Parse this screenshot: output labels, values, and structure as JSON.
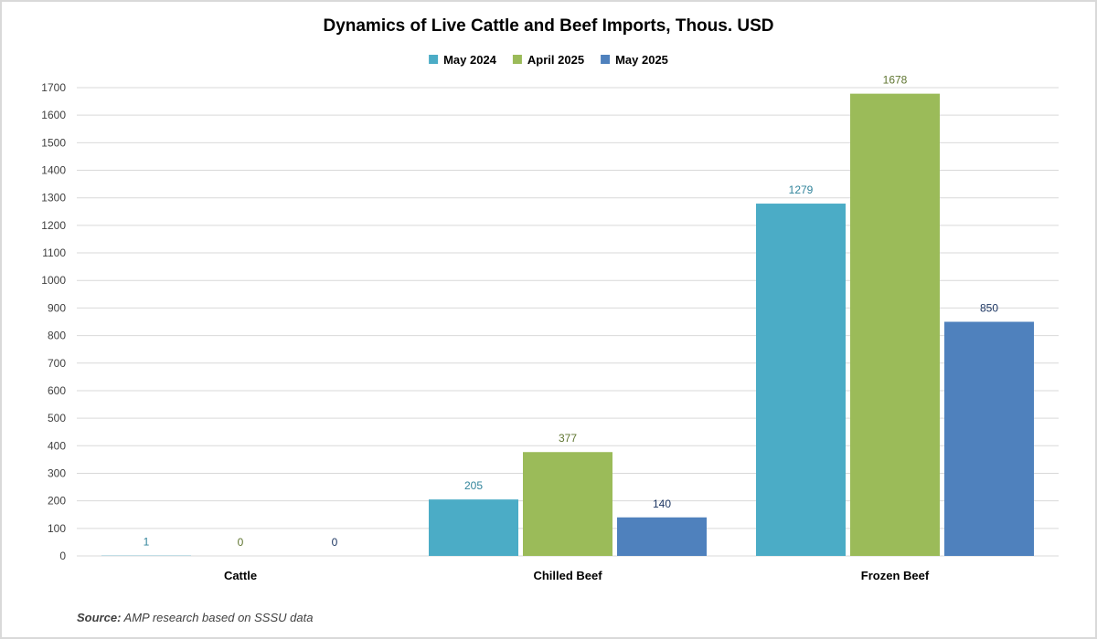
{
  "chart_data": {
    "type": "bar",
    "title": "Dynamics of Live Cattle and Beef Imports, Thous. USD",
    "xlabel": "",
    "ylabel": "",
    "categories": [
      "Cattle",
      "Chilled Beef",
      "Frozen Beef"
    ],
    "series": [
      {
        "name": "May 2024",
        "color": "#4BACC6",
        "label_color": "#31849B",
        "values": [
          1,
          205,
          1279
        ]
      },
      {
        "name": "April 2025",
        "color": "#9BBB59",
        "label_color": "#5F7530",
        "values": [
          0,
          377,
          1678
        ]
      },
      {
        "name": "May 2025",
        "color": "#4F81BD",
        "label_color": "#1F3864",
        "values": [
          0,
          140,
          850
        ]
      }
    ],
    "ylim": [
      0,
      1700
    ],
    "yticks": [
      "0",
      "100",
      "200",
      "300",
      "400",
      "500",
      "600",
      "700",
      "800",
      "900",
      "1000",
      "1100",
      "1200",
      "1300",
      "1400",
      "1500",
      "1600",
      "1700"
    ],
    "grid": true,
    "legend_position": "top"
  },
  "source": {
    "label": "Source:",
    "text": "AMP research based on SSSU data"
  }
}
